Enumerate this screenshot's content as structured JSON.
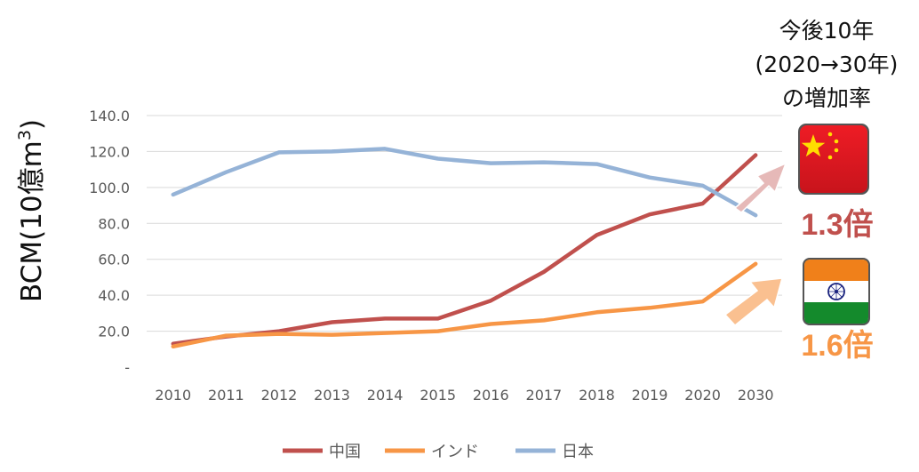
{
  "chart_data": {
    "type": "line",
    "ylabel": "BCM(10億m³)",
    "ylabel_main": "BCM(10億m",
    "ylabel_sup": "3",
    "ylabel_close": ")",
    "categories": [
      "2010",
      "2011",
      "2012",
      "2013",
      "2014",
      "2015",
      "2016",
      "2017",
      "2018",
      "2019",
      "2020",
      "2030"
    ],
    "ylim": [
      0,
      140
    ],
    "yticks": [
      "-",
      "20.0",
      "40.0",
      "60.0",
      "80.0",
      "100.0",
      "120.0",
      "140.0"
    ],
    "grid": true,
    "legend_position": "bottom",
    "series": [
      {
        "name": "中国",
        "color": "#c0504d",
        "values": [
          13.0,
          17.0,
          20.0,
          25.0,
          27.0,
          27.0,
          37.0,
          53.0,
          73.5,
          85.0,
          91.0,
          118.0
        ]
      },
      {
        "name": "インド",
        "color": "#f79646",
        "values": [
          11.5,
          17.5,
          18.5,
          18.0,
          19.0,
          20.0,
          24.0,
          26.0,
          30.5,
          33.0,
          36.5,
          57.5
        ]
      },
      {
        "name": "日本",
        "color": "#95b3d7",
        "values": [
          96.0,
          108.5,
          119.5,
          120.0,
          121.5,
          116.0,
          113.5,
          114.0,
          113.0,
          105.5,
          101.0,
          84.5
        ]
      }
    ]
  },
  "annotation": {
    "title_lines": [
      "今後10年",
      "(2020→30年)",
      "の増加率"
    ],
    "china": {
      "ratio": "1.3倍",
      "color": "#c0504d",
      "arrow_color": "#e6b9b8",
      "flag": "china-flag-icon"
    },
    "india": {
      "ratio": "1.6倍",
      "color": "#f79646",
      "arrow_color": "#fac090",
      "flag": "india-flag-icon"
    }
  }
}
